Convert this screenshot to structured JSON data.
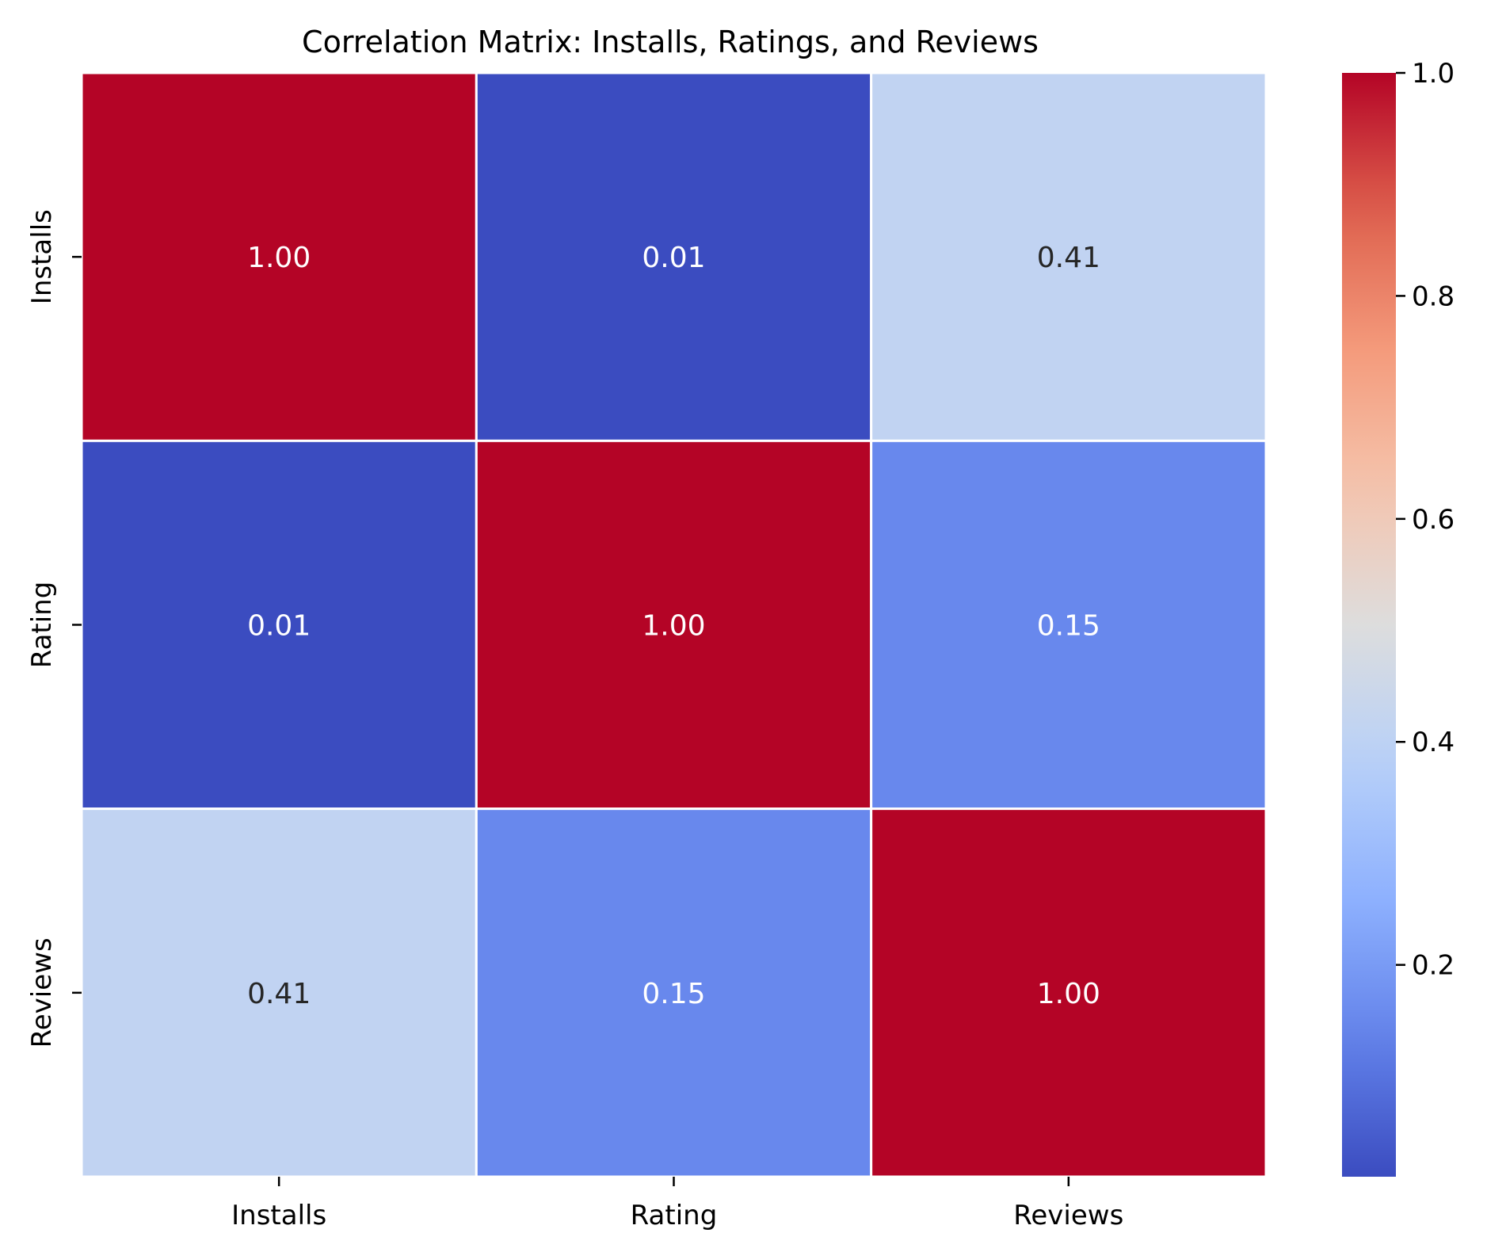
{
  "chart_data": {
    "type": "heatmap",
    "title": "Correlation Matrix: Installs, Ratings, and Reviews",
    "xlabel": "",
    "ylabel": "",
    "x_categories": [
      "Installs",
      "Rating",
      "Reviews"
    ],
    "y_categories": [
      "Installs",
      "Rating",
      "Reviews"
    ],
    "values": [
      [
        1.0,
        0.01,
        0.41
      ],
      [
        0.01,
        1.0,
        0.15
      ],
      [
        0.41,
        0.15,
        1.0
      ]
    ],
    "value_format_decimals": 2,
    "colormap": "coolwarm",
    "vmin": 0.01,
    "vmax": 1.0,
    "colorbar": {
      "ticks": [
        0.2,
        0.4,
        0.6,
        0.8,
        1.0
      ],
      "tick_labels": [
        "0.2",
        "0.4",
        "0.6",
        "0.8",
        "1.0"
      ],
      "placement": "right"
    },
    "grid": false,
    "cell_border_color": "#ffffff",
    "annotation_light_color": "#ffffff",
    "annotation_dark_color": "#262626"
  }
}
